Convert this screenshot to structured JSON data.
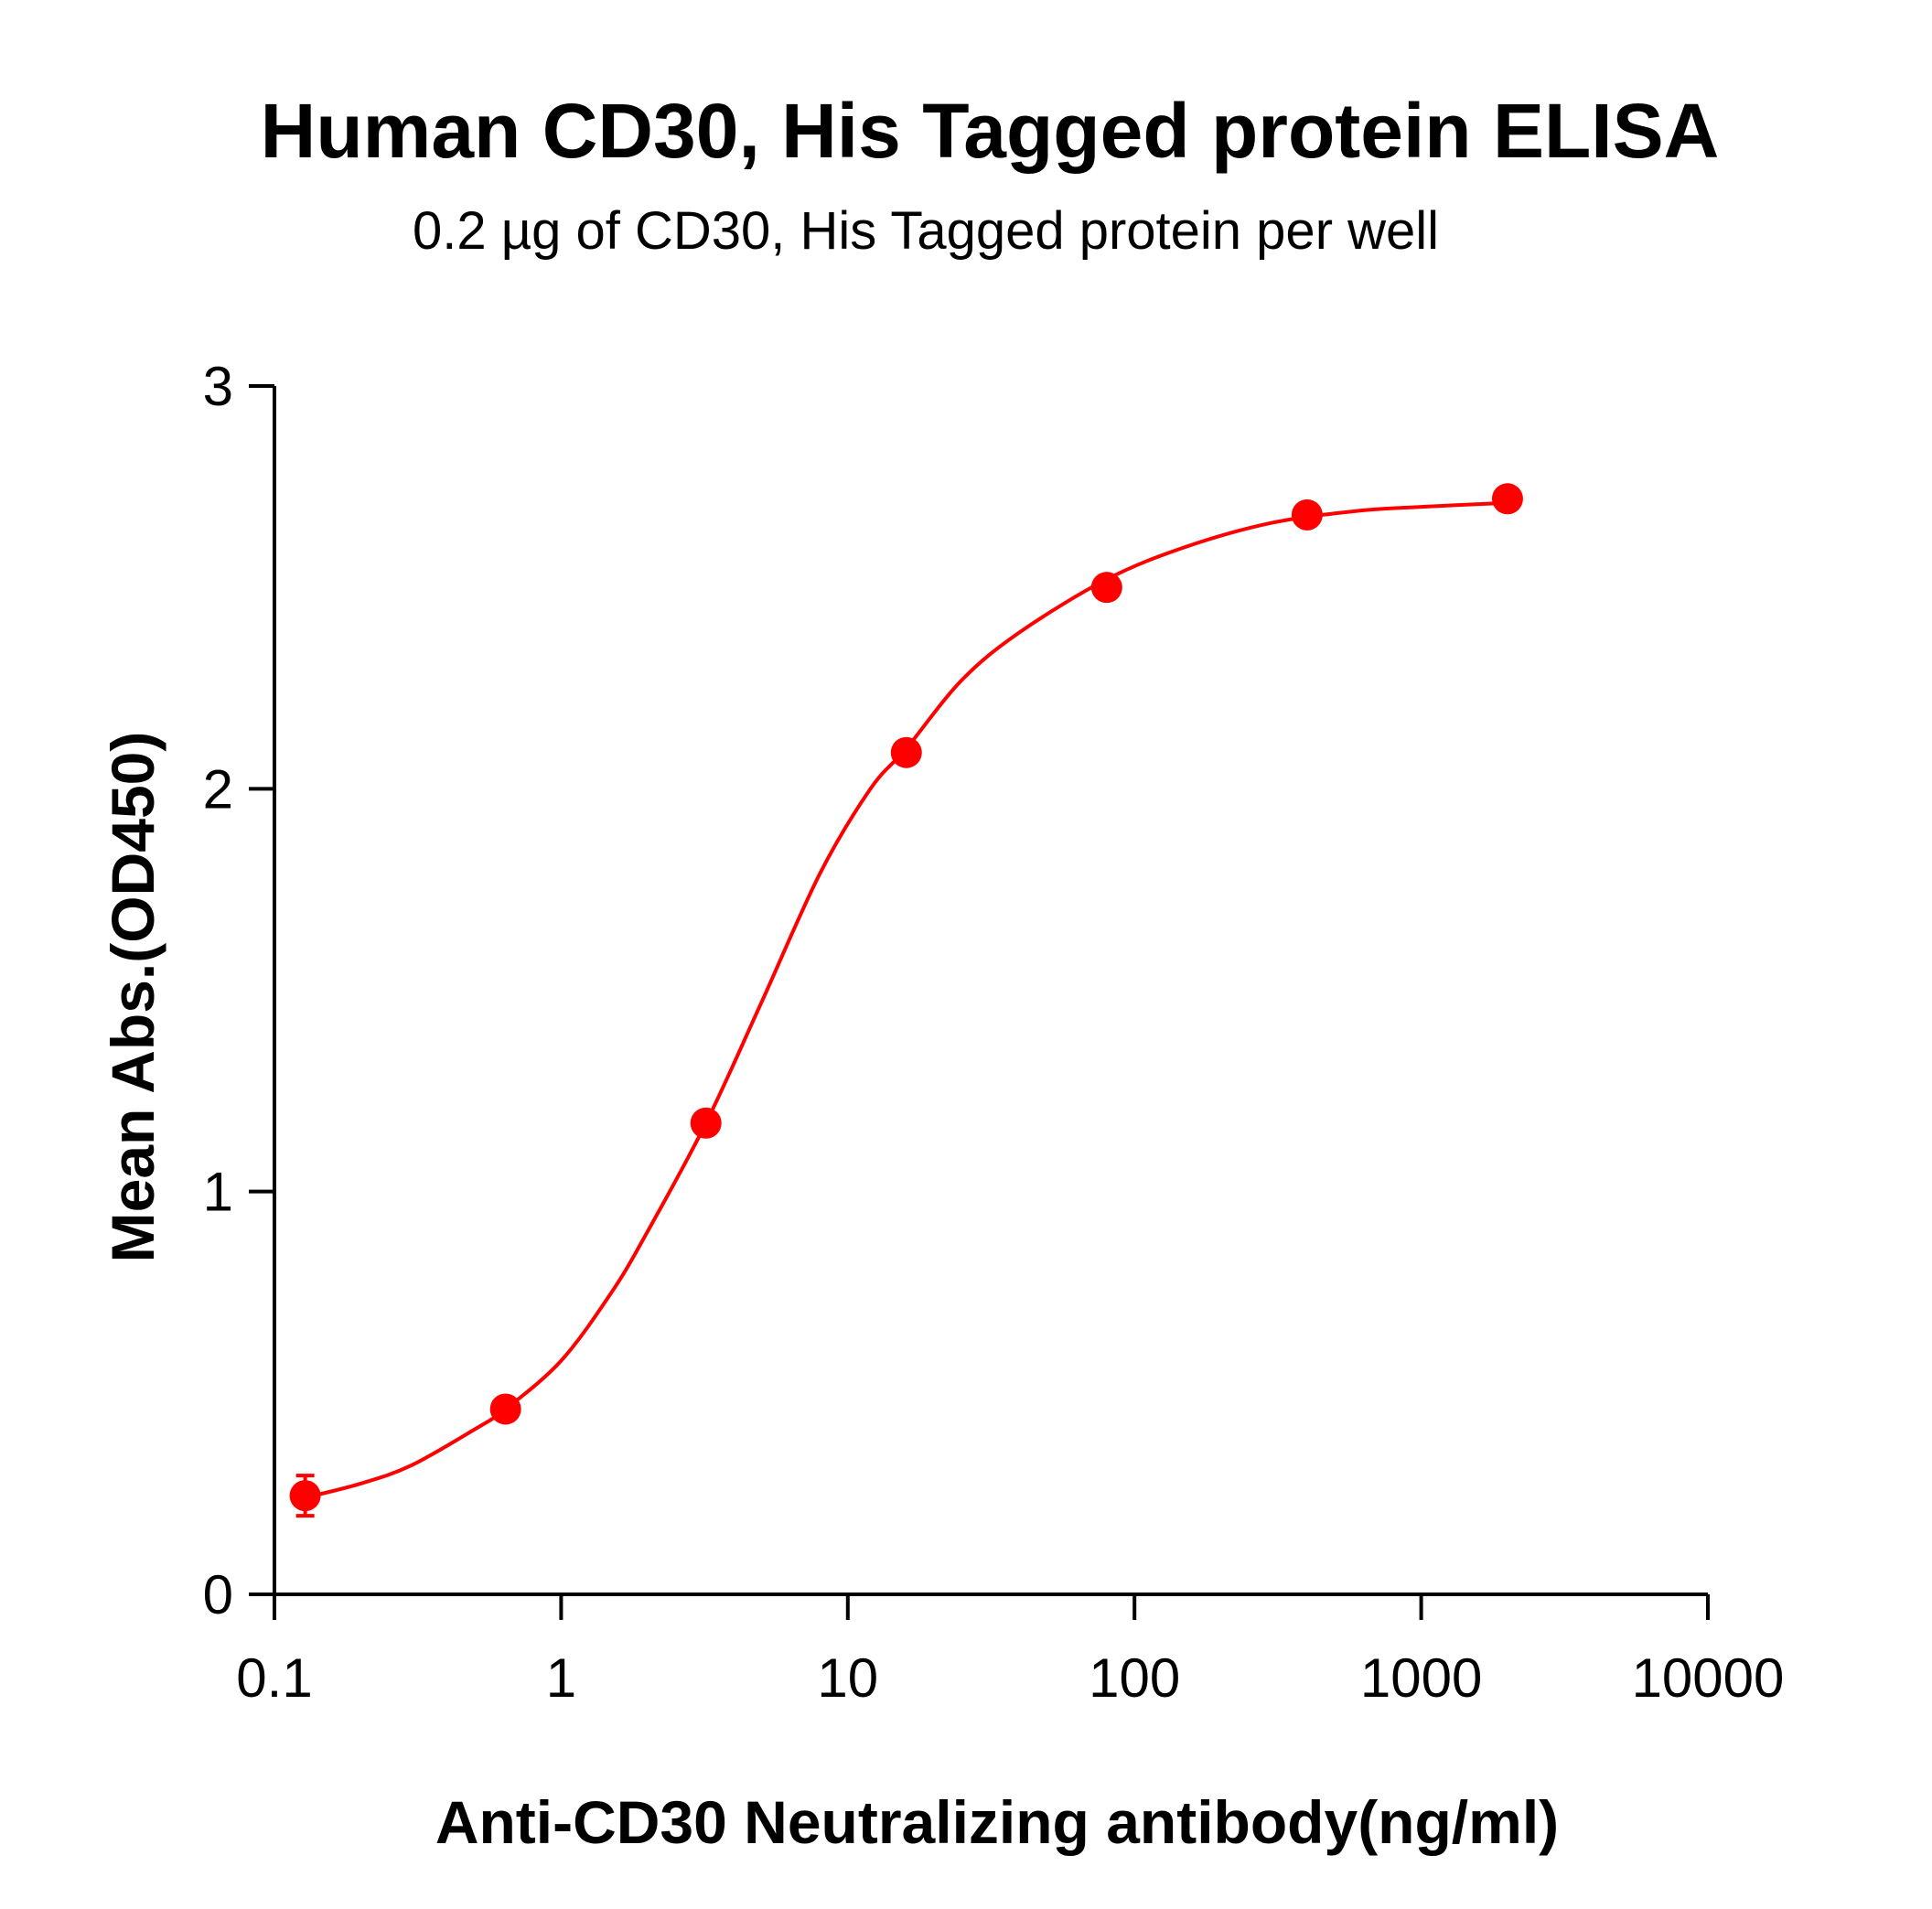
{
  "chart_data": {
    "type": "scatter",
    "title": "Human CD30, His Tagged protein ELISA",
    "subtitle": "0.2 µg of CD30, His Tagged protein per well",
    "xlabel": "Anti-CD30 Neutralizing antibody(ng/ml)",
    "ylabel": "Mean Abs.(OD450)",
    "x_scale": "log",
    "xlim": [
      0.1,
      10000
    ],
    "ylim": [
      0,
      3
    ],
    "x_ticks": [
      0.1,
      1,
      10,
      100,
      1000,
      10000
    ],
    "x_tick_labels": [
      "0.1",
      "1",
      "10",
      "100",
      "1000",
      "10000"
    ],
    "y_ticks": [
      0,
      1,
      2,
      3
    ],
    "y_tick_labels": [
      "0",
      "1",
      "2",
      "3"
    ],
    "grid": false,
    "series": [
      {
        "color": "#ff0000",
        "points": [
          {
            "x": 0.128,
            "y": 0.245,
            "err": 0.05
          },
          {
            "x": 0.64,
            "y": 0.46
          },
          {
            "x": 3.2,
            "y": 1.17
          },
          {
            "x": 16,
            "y": 2.09
          },
          {
            "x": 80,
            "y": 2.5
          },
          {
            "x": 400,
            "y": 2.68
          },
          {
            "x": 2000,
            "y": 2.72
          }
        ],
        "fit_curve": [
          {
            "x": 0.128,
            "y": 0.24
          },
          {
            "x": 0.2,
            "y": 0.275
          },
          {
            "x": 0.3,
            "y": 0.32
          },
          {
            "x": 0.5,
            "y": 0.41
          },
          {
            "x": 0.64,
            "y": 0.46
          },
          {
            "x": 1,
            "y": 0.58
          },
          {
            "x": 1.5,
            "y": 0.75
          },
          {
            "x": 2,
            "y": 0.9
          },
          {
            "x": 3.2,
            "y": 1.17
          },
          {
            "x": 5,
            "y": 1.47
          },
          {
            "x": 8,
            "y": 1.79
          },
          {
            "x": 12,
            "y": 2.0
          },
          {
            "x": 16,
            "y": 2.1
          },
          {
            "x": 25,
            "y": 2.27
          },
          {
            "x": 40,
            "y": 2.39
          },
          {
            "x": 80,
            "y": 2.52
          },
          {
            "x": 150,
            "y": 2.6
          },
          {
            "x": 300,
            "y": 2.66
          },
          {
            "x": 600,
            "y": 2.69
          },
          {
            "x": 1000,
            "y": 2.7
          },
          {
            "x": 2000,
            "y": 2.71
          }
        ]
      }
    ]
  }
}
